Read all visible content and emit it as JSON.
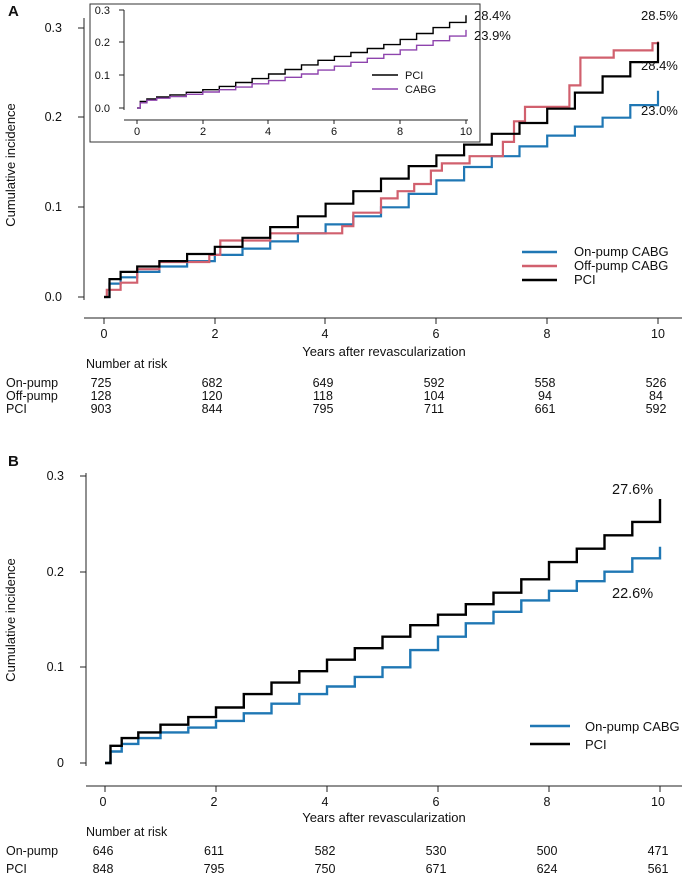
{
  "chart_data": [
    {
      "panel": "A",
      "type": "line",
      "step": true,
      "xlabel": "Years after revascularization",
      "ylabel": "Cumulative incidence",
      "xlim": [
        0,
        10
      ],
      "ylim": [
        0,
        0.3
      ],
      "xticks": [
        "0",
        "2",
        "4",
        "6",
        "8",
        "10"
      ],
      "yticks": [
        "0.0",
        "0.1",
        "0.2",
        "0.3"
      ],
      "legend_position": "bottom-right",
      "series": [
        {
          "name": "On-pump CABG",
          "color": "#1f77b4",
          "x": [
            0,
            0.1,
            0.3,
            0.6,
            1.0,
            1.5,
            2.0,
            2.5,
            3.0,
            3.5,
            4.0,
            4.5,
            5.0,
            5.5,
            6.0,
            6.5,
            7.0,
            7.5,
            8.0,
            8.5,
            9.0,
            9.5,
            10.0
          ],
          "values": [
            0,
            0.015,
            0.022,
            0.028,
            0.034,
            0.04,
            0.047,
            0.054,
            0.062,
            0.071,
            0.081,
            0.09,
            0.1,
            0.115,
            0.13,
            0.145,
            0.157,
            0.168,
            0.18,
            0.19,
            0.2,
            0.214,
            0.23
          ]
        },
        {
          "name": "Off-pump CABG",
          "color": "#d1606e",
          "x": [
            0,
            0.05,
            0.3,
            0.6,
            1.0,
            1.9,
            2.1,
            3.0,
            4.3,
            4.5,
            5.0,
            5.3,
            5.6,
            5.9,
            6.1,
            6.6,
            7.2,
            7.4,
            7.6,
            8.4,
            8.6,
            9.2,
            9.9,
            10.0
          ],
          "values": [
            0,
            0.008,
            0.016,
            0.031,
            0.039,
            0.047,
            0.063,
            0.071,
            0.079,
            0.094,
            0.11,
            0.118,
            0.126,
            0.141,
            0.149,
            0.157,
            0.173,
            0.196,
            0.212,
            0.236,
            0.267,
            0.275,
            0.283,
            0.285
          ]
        },
        {
          "name": "PCI",
          "color": "#000000",
          "x": [
            0,
            0.1,
            0.3,
            0.6,
            1.0,
            1.5,
            2.0,
            2.5,
            3.0,
            3.5,
            4.0,
            4.5,
            5.0,
            5.5,
            6.0,
            6.5,
            7.0,
            7.5,
            8.0,
            8.5,
            9.0,
            9.5,
            10.0
          ],
          "values": [
            0,
            0.02,
            0.028,
            0.034,
            0.04,
            0.048,
            0.056,
            0.066,
            0.078,
            0.09,
            0.104,
            0.118,
            0.132,
            0.146,
            0.158,
            0.17,
            0.182,
            0.194,
            0.21,
            0.228,
            0.246,
            0.262,
            0.284
          ]
        }
      ],
      "annotations": [
        "28.5%",
        "28.4%",
        "23.0%"
      ],
      "inset": {
        "xlim": [
          0,
          10
        ],
        "ylim": [
          0,
          0.3
        ],
        "xticks": [
          "0",
          "2",
          "4",
          "6",
          "8",
          "10"
        ],
        "yticks": [
          "0.0",
          "0.1",
          "0.2",
          "0.3"
        ],
        "legend_position": "bottom-right",
        "series": [
          {
            "name": "PCI",
            "color": "#000000",
            "x": [
              0,
              0.1,
              0.3,
              0.6,
              1.0,
              1.5,
              2.0,
              2.5,
              3.0,
              3.5,
              4.0,
              4.5,
              5.0,
              5.5,
              6.0,
              6.5,
              7.0,
              7.5,
              8.0,
              8.5,
              9.0,
              9.5,
              10.0
            ],
            "values": [
              0,
              0.02,
              0.028,
              0.034,
              0.04,
              0.048,
              0.056,
              0.066,
              0.078,
              0.09,
              0.104,
              0.118,
              0.132,
              0.146,
              0.158,
              0.17,
              0.182,
              0.194,
              0.21,
              0.228,
              0.246,
              0.262,
              0.284
            ]
          },
          {
            "name": "CABG",
            "color": "#8e44ad",
            "x": [
              0,
              0.1,
              0.3,
              0.6,
              1.0,
              1.5,
              2.0,
              2.5,
              3.0,
              3.5,
              4.0,
              4.5,
              5.0,
              5.5,
              6.0,
              6.5,
              7.0,
              7.5,
              8.0,
              8.5,
              9.0,
              9.5,
              10.0
            ],
            "values": [
              0,
              0.016,
              0.024,
              0.03,
              0.035,
              0.042,
              0.049,
              0.056,
              0.064,
              0.074,
              0.084,
              0.094,
              0.104,
              0.116,
              0.128,
              0.14,
              0.152,
              0.164,
              0.178,
              0.192,
              0.206,
              0.22,
              0.239
            ]
          }
        ],
        "annotations": [
          "28.4%",
          "23.9%"
        ]
      },
      "risk_table": {
        "header": "Number at risk",
        "times": [
          0,
          2,
          4,
          6,
          8,
          10
        ],
        "rows": [
          {
            "label": "On-pump",
            "values": [
              "725",
              "682",
              "649",
              "592",
              "558",
              "526"
            ]
          },
          {
            "label": "Off-pump",
            "values": [
              "128",
              "120",
              "118",
              "104",
              "94",
              "84"
            ]
          },
          {
            "label": "PCI",
            "values": [
              "903",
              "844",
              "795",
              "711",
              "661",
              "592"
            ]
          }
        ]
      }
    },
    {
      "panel": "B",
      "type": "line",
      "step": true,
      "xlabel": "Years after revascularization",
      "ylabel": "Cumulative incidence",
      "xlim": [
        0,
        10
      ],
      "ylim": [
        0,
        0.3
      ],
      "xticks": [
        "0",
        "2",
        "4",
        "6",
        "8",
        "10"
      ],
      "yticks": [
        "0",
        "0.1",
        "0.2",
        "0.3"
      ],
      "legend_position": "bottom-right",
      "series": [
        {
          "name": "On-pump CABG",
          "color": "#1f77b4",
          "x": [
            0,
            0.1,
            0.3,
            0.6,
            1.0,
            1.5,
            2.0,
            2.5,
            3.0,
            3.5,
            4.0,
            4.5,
            5.0,
            5.5,
            6.0,
            6.5,
            7.0,
            7.5,
            8.0,
            8.5,
            9.0,
            9.5,
            10.0
          ],
          "values": [
            0,
            0.012,
            0.02,
            0.026,
            0.032,
            0.037,
            0.044,
            0.052,
            0.062,
            0.072,
            0.08,
            0.09,
            0.1,
            0.118,
            0.132,
            0.146,
            0.158,
            0.17,
            0.18,
            0.19,
            0.2,
            0.214,
            0.226
          ]
        },
        {
          "name": "PCI",
          "color": "#000000",
          "x": [
            0,
            0.1,
            0.3,
            0.6,
            1.0,
            1.5,
            2.0,
            2.5,
            3.0,
            3.5,
            4.0,
            4.5,
            5.0,
            5.5,
            6.0,
            6.5,
            7.0,
            7.5,
            8.0,
            8.5,
            9.0,
            9.5,
            10.0
          ],
          "values": [
            0,
            0.018,
            0.026,
            0.032,
            0.04,
            0.048,
            0.058,
            0.072,
            0.084,
            0.096,
            0.108,
            0.12,
            0.132,
            0.144,
            0.155,
            0.166,
            0.178,
            0.192,
            0.21,
            0.224,
            0.238,
            0.252,
            0.276
          ]
        }
      ],
      "annotations": [
        "27.6%",
        "22.6%"
      ],
      "risk_table": {
        "header": "Number at risk",
        "times": [
          0,
          2,
          4,
          6,
          8,
          10
        ],
        "rows": [
          {
            "label": "On-pump",
            "values": [
              "646",
              "611",
              "582",
              "530",
              "500",
              "471"
            ]
          },
          {
            "label": "PCI",
            "values": [
              "848",
              "795",
              "750",
              "671",
              "624",
              "561"
            ]
          }
        ]
      }
    }
  ]
}
